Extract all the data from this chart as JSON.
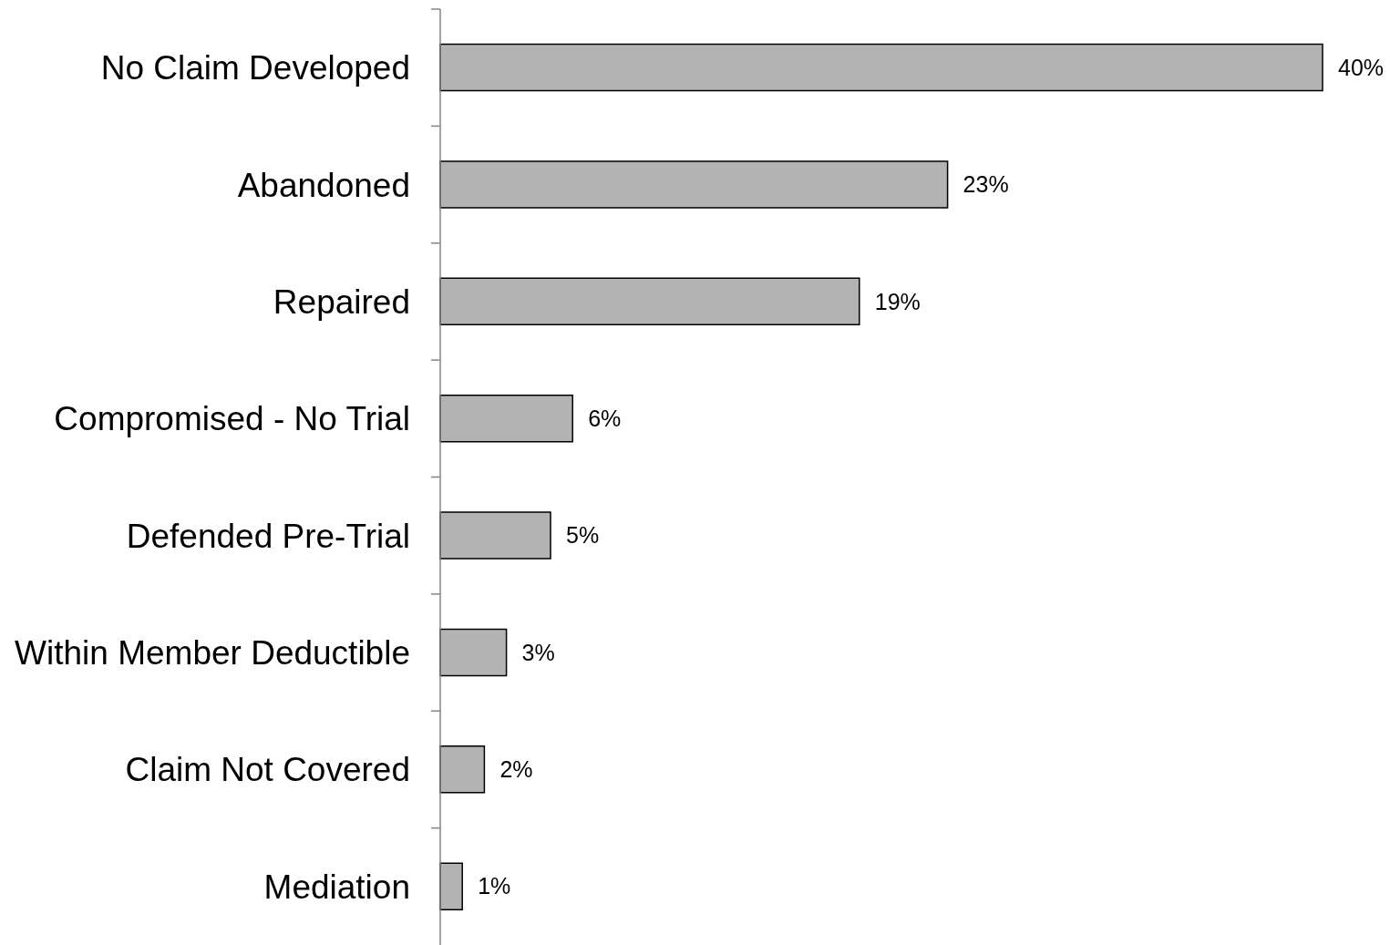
{
  "chart_data": {
    "type": "bar",
    "orientation": "horizontal",
    "categories": [
      "No Claim Developed",
      "Abandoned",
      "Repaired",
      "Compromised - No Trial",
      "Defended Pre-Trial",
      "Within Member Deductible",
      "Claim Not Covered",
      "Mediation"
    ],
    "values": [
      40,
      23,
      19,
      6,
      5,
      3,
      2,
      1
    ],
    "value_labels": [
      "40%",
      "23%",
      "19%",
      "6%",
      "5%",
      "3%",
      "2%",
      "1%"
    ],
    "color": "#b3b3b3"
  }
}
